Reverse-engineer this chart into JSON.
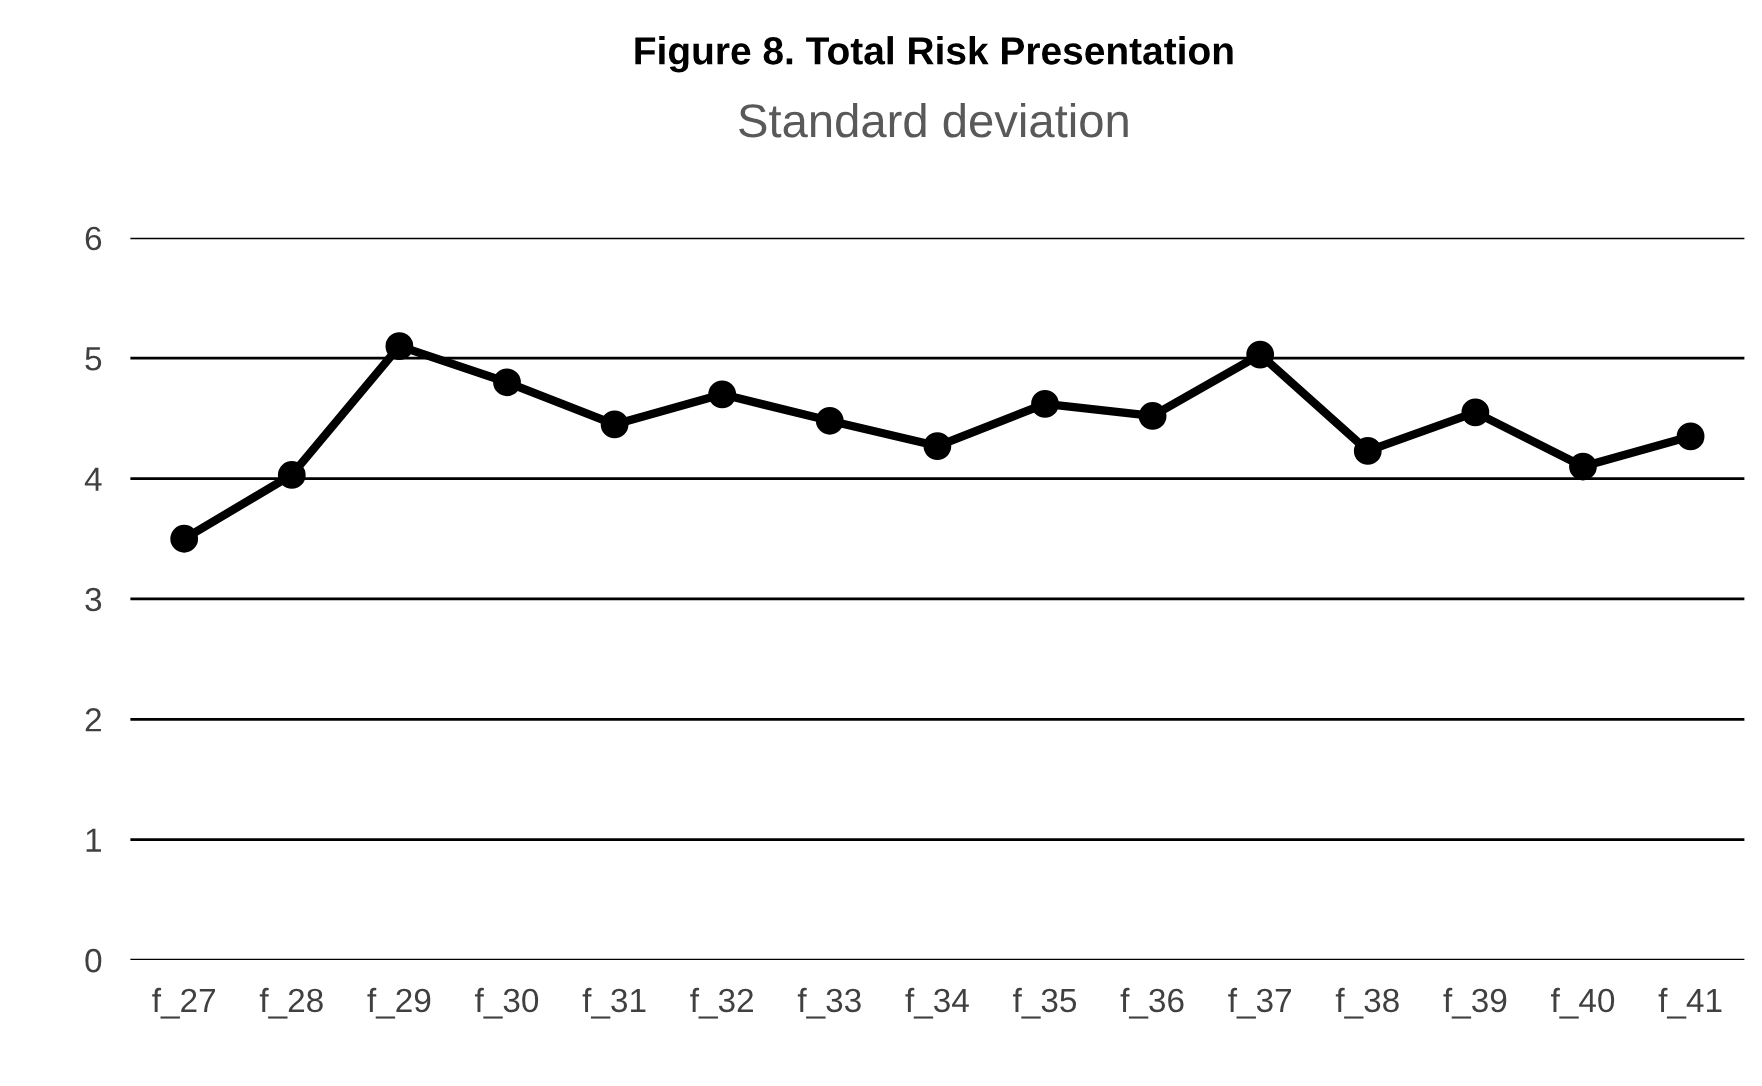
{
  "chart_data": {
    "type": "line",
    "title": "Figure 8. Total Risk Presentation",
    "subtitle": "Standard deviation",
    "categories": [
      "f_27",
      "f_28",
      "f_29",
      "f_30",
      "f_31",
      "f_32",
      "f_33",
      "f_34",
      "f_35",
      "f_36",
      "f_37",
      "f_38",
      "f_39",
      "f_40",
      "f_41"
    ],
    "series": [
      {
        "color": "#000000",
        "values": [
          3.5,
          4.03,
          5.1,
          4.8,
          4.45,
          4.7,
          4.48,
          4.27,
          4.62,
          4.52,
          5.03,
          4.23,
          4.55,
          4.1,
          4.35
        ]
      }
    ],
    "ylim": [
      0,
      6
    ],
    "yticks": [
      0,
      1,
      2,
      3,
      4,
      5,
      6
    ],
    "grid": "y",
    "marker": "circle",
    "line_style": "solid",
    "legend": false
  }
}
